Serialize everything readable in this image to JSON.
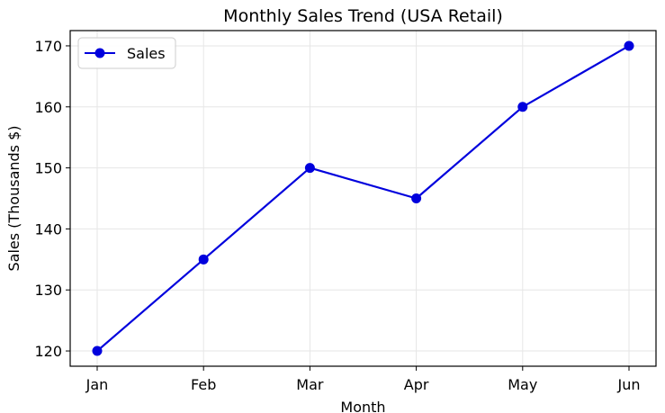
{
  "chart_data": {
    "type": "line",
    "title": "Monthly Sales Trend (USA Retail)",
    "xlabel": "Month",
    "ylabel": "Sales (Thousands $)",
    "categories": [
      "Jan",
      "Feb",
      "Mar",
      "Apr",
      "May",
      "Jun"
    ],
    "series": [
      {
        "name": "Sales",
        "values": [
          120,
          135,
          150,
          145,
          160,
          170
        ],
        "color": "#0000dd",
        "marker": "circle"
      }
    ],
    "ylim": [
      117.5,
      172.5
    ],
    "yticks": [
      120,
      130,
      140,
      150,
      160,
      170
    ],
    "grid": true,
    "legend_position": "top-left"
  }
}
